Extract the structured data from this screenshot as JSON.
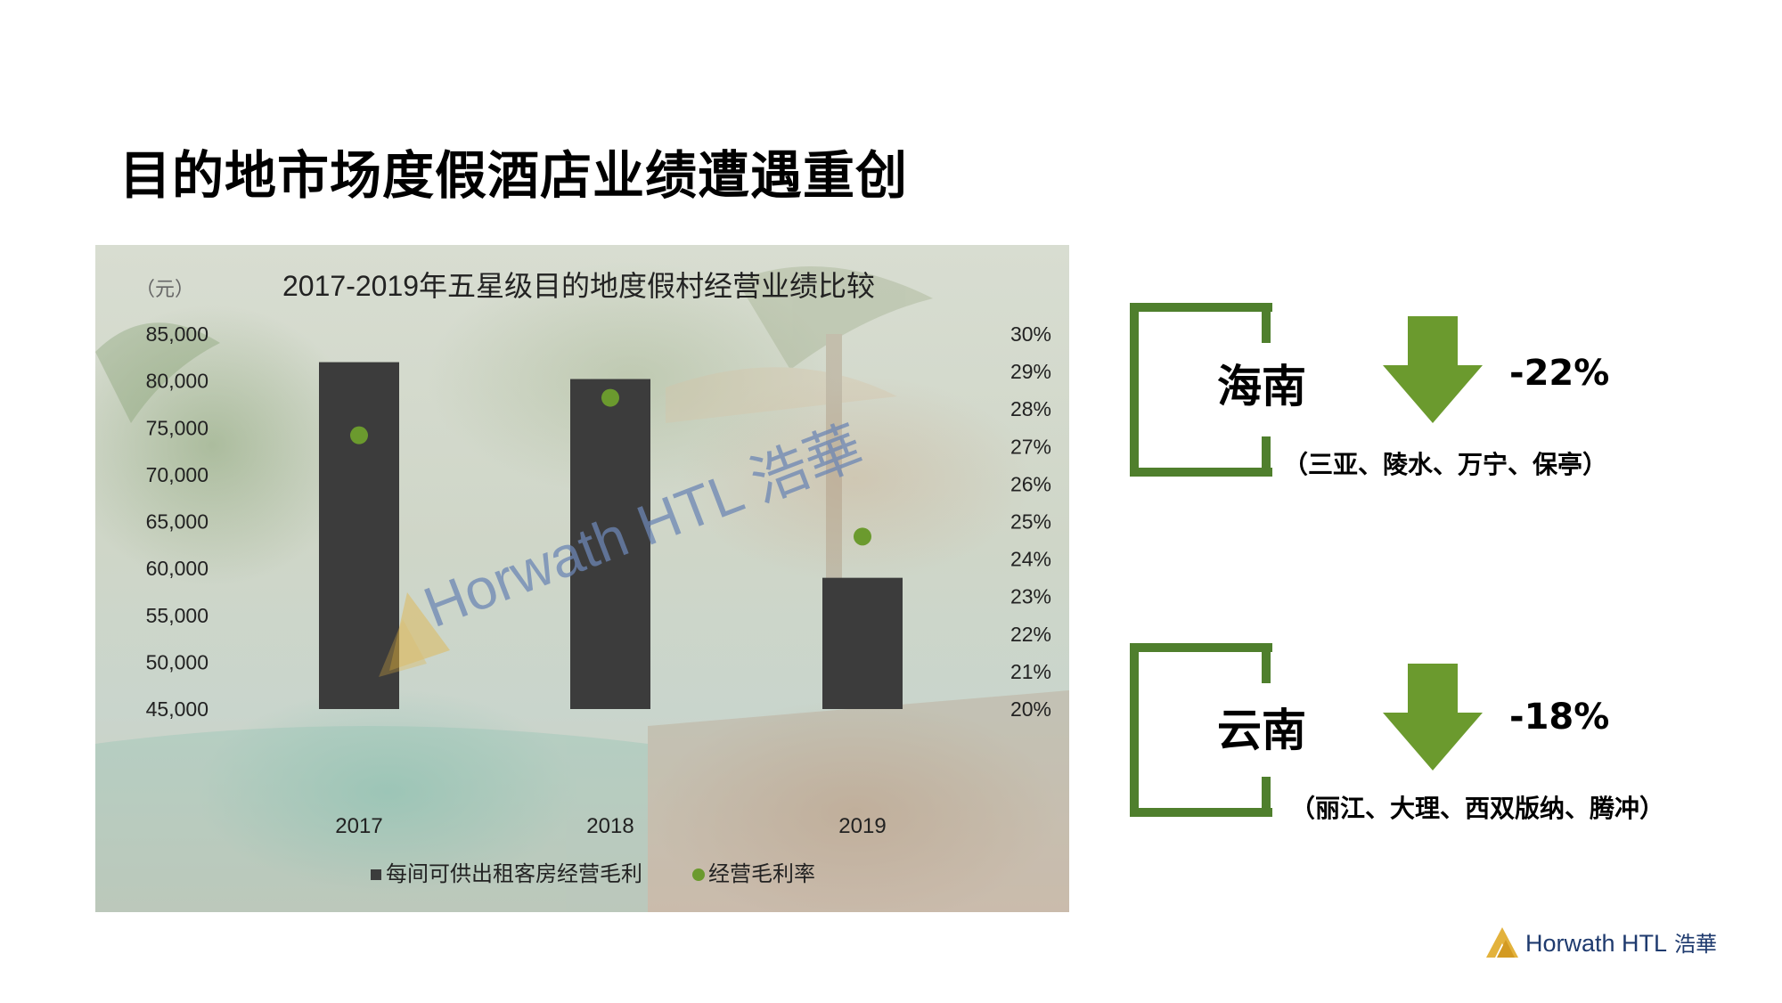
{
  "page": {
    "title": "目的地市场度假酒店业绩遭遇重创"
  },
  "chart_data": {
    "type": "bar",
    "title": "2017-2019年五星级目的地度假村经营业绩比较",
    "ylabel": "（元）",
    "categories": [
      "2017",
      "2018",
      "2019"
    ],
    "series": [
      {
        "name": "每间可供出租客房经营毛利",
        "kind": "bar",
        "axis": "left",
        "color": "#3c3c3c",
        "values": [
          82000,
          80200,
          59000
        ]
      },
      {
        "name": "经营毛利率",
        "kind": "scatter",
        "axis": "right",
        "color": "#6b9a2e",
        "values": [
          27.3,
          28.3,
          24.6
        ]
      }
    ],
    "ylim": [
      45000,
      85000
    ],
    "y2lim": [
      20,
      30
    ],
    "y_ticks": [
      "85,000",
      "80,000",
      "75,000",
      "70,000",
      "65,000",
      "60,000",
      "55,000",
      "50,000",
      "45,000"
    ],
    "y2_ticks": [
      "30%",
      "29%",
      "28%",
      "27%",
      "26%",
      "25%",
      "24%",
      "23%",
      "22%",
      "21%",
      "20%"
    ],
    "legend_position": "bottom",
    "grid": false
  },
  "watermark": {
    "text": "Horwath HTL 浩華"
  },
  "regions": [
    {
      "name": "海南",
      "change": "-22%",
      "areas": "（三亚、陵水、万宁、保亭）",
      "trend_icon": "down-arrow-icon"
    },
    {
      "name": "云南",
      "change": "-18%",
      "areas": "（丽江、大理、西双版纳、腾冲）",
      "trend_icon": "down-arrow-icon"
    }
  ],
  "footer": {
    "logo_text": "Horwath HTL",
    "logo_cn": "浩華"
  },
  "colors": {
    "accent_green": "#6b9a2e",
    "bracket_green": "#4f7f2d",
    "bar_dark": "#3c3c3c",
    "logo_gold": "#e3b23c",
    "logo_blue": "#1e3a6e"
  }
}
